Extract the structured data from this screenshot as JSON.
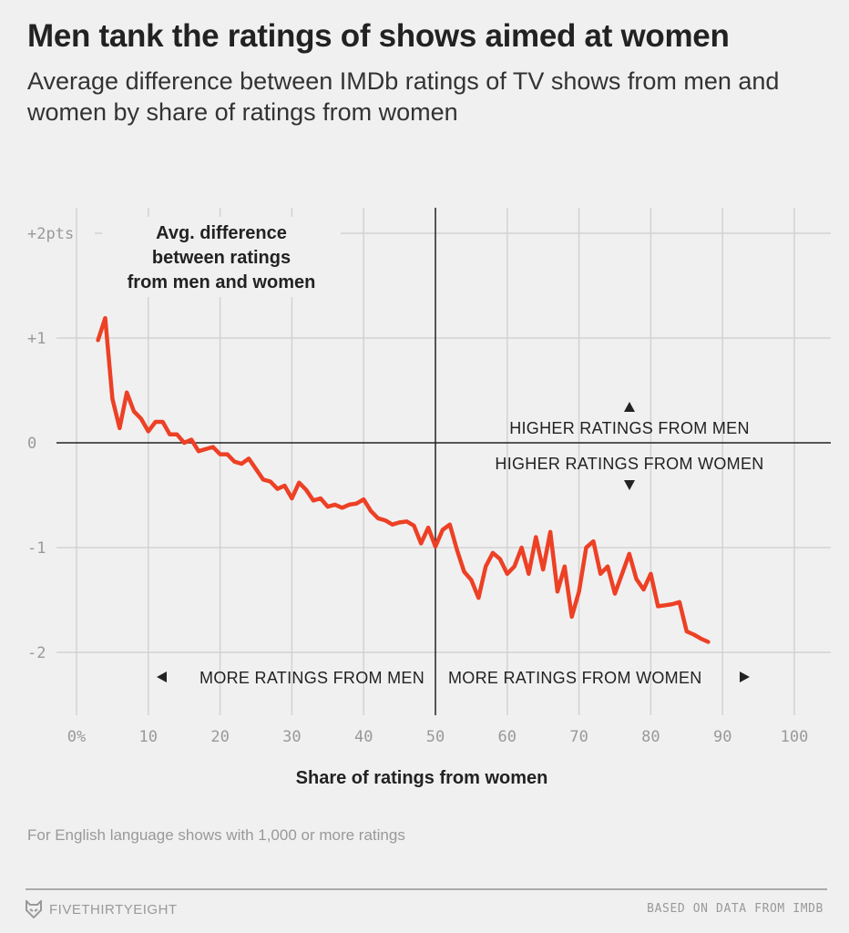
{
  "title": "Men tank the ratings of shows aimed at women",
  "subtitle": "Average difference between IMDb ratings of TV shows from men and women by share of ratings from women",
  "note": "For English language shows with 1,000 or more ratings",
  "footer": {
    "logo": "FIVETHIRTYEIGHT",
    "source": "BASED ON DATA FROM IMDB",
    "logo_icon": "fox-icon"
  },
  "colors": {
    "line": "#ed4025",
    "background": "#f0f0f0"
  },
  "chart_data": {
    "type": "line",
    "title": "Men tank the ratings of shows aimed at women",
    "xlabel": "Share of ratings from women",
    "ylabel": "",
    "xlim": [
      0,
      100
    ],
    "ylim": [
      -2.5,
      2
    ],
    "grid": true,
    "x_ticks": [
      0,
      10,
      20,
      30,
      40,
      50,
      60,
      70,
      80,
      90,
      100
    ],
    "x_tick_labels": [
      "0%",
      "10",
      "20",
      "30",
      "40",
      "50",
      "60",
      "70",
      "80",
      "90",
      "100"
    ],
    "y_ticks": [
      2,
      1,
      0,
      -1,
      -2
    ],
    "y_tick_labels": [
      "+2pts",
      "+1",
      "0",
      "-1",
      "-2"
    ],
    "line_label": "Avg. difference between ratings from men and women",
    "annotations": {
      "higher_men": "HIGHER RATINGS FROM MEN",
      "higher_women": "HIGHER RATINGS FROM WOMEN",
      "more_men": "MORE RATINGS FROM MEN",
      "more_women": "MORE RATINGS FROM WOMEN"
    },
    "x": [
      3,
      4,
      5,
      6,
      7,
      8,
      9,
      10,
      11,
      12,
      13,
      14,
      15,
      16,
      17,
      18,
      19,
      20,
      21,
      22,
      23,
      24,
      25,
      26,
      27,
      28,
      29,
      30,
      31,
      32,
      33,
      34,
      35,
      36,
      37,
      38,
      39,
      40,
      41,
      42,
      43,
      44,
      45,
      46,
      47,
      48,
      49,
      50,
      51,
      52,
      53,
      54,
      55,
      56,
      57,
      58,
      59,
      60,
      61,
      62,
      63,
      64,
      65,
      66,
      67,
      68,
      69,
      70,
      71,
      72,
      73,
      74,
      75,
      76,
      77,
      78,
      79,
      80,
      81,
      82,
      83,
      84,
      85,
      86,
      87,
      88
    ],
    "y": [
      0.98,
      1.19,
      0.42,
      0.14,
      0.48,
      0.3,
      0.23,
      0.11,
      0.2,
      0.2,
      0.08,
      0.08,
      0.0,
      0.03,
      -0.08,
      -0.06,
      -0.04,
      -0.11,
      -0.11,
      -0.18,
      -0.2,
      -0.15,
      -0.25,
      -0.35,
      -0.37,
      -0.44,
      -0.41,
      -0.53,
      -0.38,
      -0.45,
      -0.55,
      -0.53,
      -0.61,
      -0.59,
      -0.62,
      -0.59,
      -0.58,
      -0.54,
      -0.65,
      -0.72,
      -0.74,
      -0.78,
      -0.76,
      -0.75,
      -0.79,
      -0.96,
      -0.81,
      -0.99,
      -0.83,
      -0.78,
      -1.02,
      -1.23,
      -1.31,
      -1.48,
      -1.18,
      -1.05,
      -1.11,
      -1.25,
      -1.18,
      -1.0,
      -1.25,
      -0.9,
      -1.21,
      -0.85,
      -1.42,
      -1.18,
      -1.66,
      -1.42,
      -1.0,
      -0.94,
      -1.25,
      -1.18,
      -1.44,
      -1.25,
      -1.06,
      -1.3,
      -1.4,
      -1.25,
      -1.56,
      -1.55,
      -1.54,
      -1.52,
      -1.8,
      -1.83,
      -1.87,
      -1.9
    ]
  }
}
